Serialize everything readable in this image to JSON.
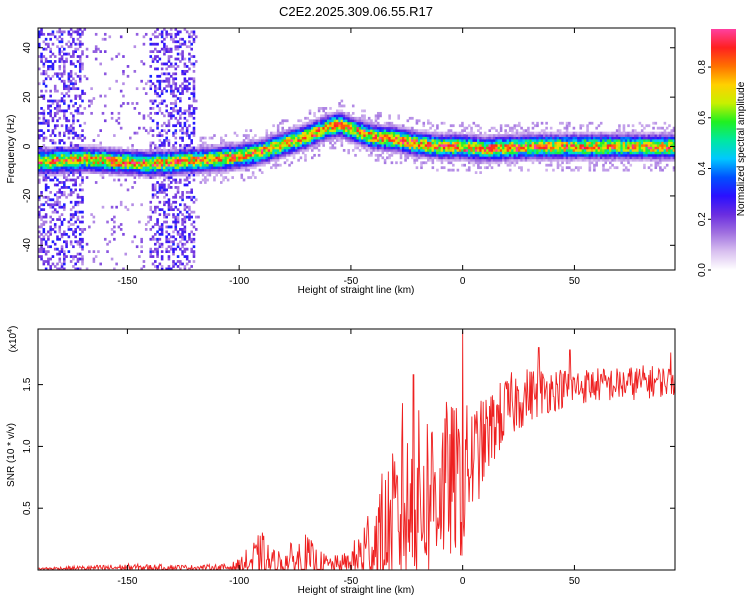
{
  "title": "C2E2.2025.309.06.55.R17",
  "chart_data": [
    {
      "type": "heatmap",
      "panel": "top",
      "xlabel": "Height of straight line (km)",
      "ylabel": "Frequency (Hz)",
      "xlim": [
        -190,
        95
      ],
      "ylim": [
        -50,
        48
      ],
      "xticks": [
        -150,
        -100,
        -50,
        0,
        50
      ],
      "yticks": [
        -40,
        -20,
        0,
        20,
        40
      ],
      "colorbar": {
        "label": "Normalized spectral amplitude",
        "range": [
          0.0,
          0.95
        ],
        "ticks": [
          0.0,
          0.2,
          0.4,
          0.6,
          0.8
        ],
        "tick_labels": [
          "0.0",
          "0.2",
          "0.4",
          "0.6",
          "0.8"
        ]
      },
      "ridge_center_hz": {
        "x": [
          -185,
          -170,
          -155,
          -140,
          -125,
          -110,
          -100,
          -90,
          -80,
          -70,
          -60,
          -55,
          -50,
          -40,
          -30,
          -20,
          -10,
          0,
          10,
          30,
          50,
          70,
          95
        ],
        "y": [
          -6,
          -5,
          -6,
          -7,
          -6,
          -5,
          -4,
          -2,
          1,
          4,
          8,
          9,
          7,
          4,
          3,
          1,
          0,
          0,
          -1,
          0,
          0,
          0,
          0
        ]
      },
      "colors": {
        "colormap": [
          "#ffffff",
          "#d9c0f0",
          "#a070e0",
          "#6a2de0",
          "#2a10ff",
          "#0050ff",
          "#00c8ff",
          "#00e8a0",
          "#20f020",
          "#c8f000",
          "#ffd000",
          "#ff7000",
          "#ff2020",
          "#ff40a0"
        ]
      }
    },
    {
      "type": "line",
      "panel": "bottom",
      "xlabel": "Height of straight line (km)",
      "ylabel": "SNR (10 * v/v)",
      "scale_label": "(x10",
      "scale_exponent": "4",
      "scale_suffix": ")",
      "xlim": [
        -190,
        95
      ],
      "ylim": [
        0,
        1.95
      ],
      "xticks": [
        -150,
        -100,
        -50,
        0,
        50
      ],
      "yticks": [
        0.5,
        1.0,
        1.5
      ],
      "ytick_labels": [
        "0.5",
        "1.0",
        "1.5"
      ],
      "series": [
        {
          "name": "SNR",
          "color": "#ee2020",
          "envelope": {
            "x": [
              -190,
              -150,
              -120,
              -105,
              -100,
              -95,
              -90,
              -85,
              -80,
              -75,
              -70,
              -65,
              -60,
              -55,
              -50,
              -45,
              -40,
              -35,
              -30,
              -25,
              -20,
              -15,
              -10,
              -5,
              -1,
              0,
              1,
              5,
              10,
              15,
              20,
              25,
              30,
              40,
              50,
              60,
              70,
              80,
              95
            ],
            "baseline": [
              0.01,
              0.02,
              0.02,
              0.02,
              0.03,
              0.06,
              0.07,
              0.05,
              0.05,
              0.07,
              0.08,
              0.05,
              0.04,
              0.04,
              0.05,
              0.12,
              0.2,
              0.28,
              0.35,
              0.45,
              0.55,
              0.62,
              0.68,
              0.72,
              0.7,
              0.05,
              0.8,
              0.9,
              1.05,
              1.2,
              1.3,
              1.38,
              1.42,
              1.46,
              1.48,
              1.5,
              1.5,
              1.52,
              1.53
            ],
            "amplitude": [
              0.01,
              0.03,
              0.02,
              0.03,
              0.06,
              0.15,
              0.25,
              0.12,
              0.12,
              0.18,
              0.22,
              0.12,
              0.08,
              0.08,
              0.12,
              0.3,
              0.45,
              0.55,
              0.65,
              0.7,
              0.75,
              0.75,
              0.7,
              0.65,
              0.6,
              0.0,
              0.55,
              0.45,
              0.35,
              0.3,
              0.28,
              0.26,
              0.22,
              0.18,
              0.15,
              0.14,
              0.14,
              0.14,
              0.12
            ]
          },
          "peaks": [
            {
              "x": 0,
              "y": 1.93
            },
            {
              "x": -22,
              "y": 1.58
            },
            {
              "x": -27,
              "y": 1.35
            },
            {
              "x": 34,
              "y": 1.8
            },
            {
              "x": 48,
              "y": 1.78
            },
            {
              "x": 93,
              "y": 1.76
            }
          ]
        }
      ]
    }
  ]
}
